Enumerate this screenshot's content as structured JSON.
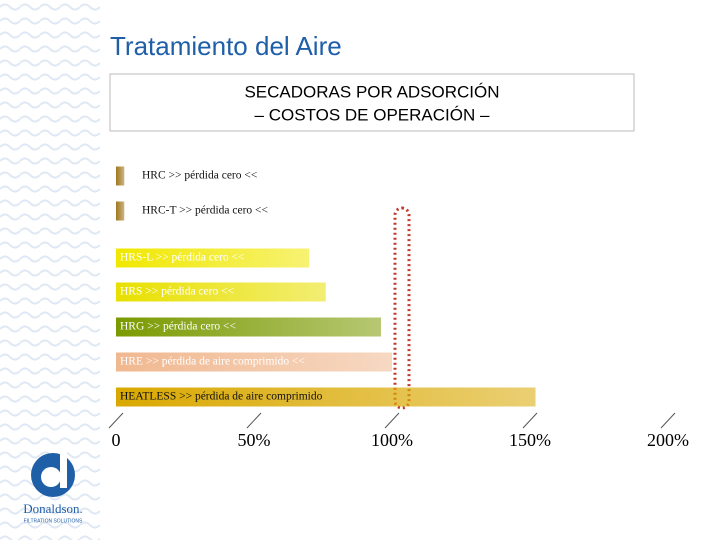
{
  "slide_title": "Tratamiento  del Aire",
  "logo": {
    "name": "Donaldson.",
    "tagline": "FILTRATION SOLUTIONS"
  },
  "chart_data": {
    "type": "bar",
    "orientation": "horizontal",
    "title": "SECADORAS POR ADSORCIÓN",
    "subtitle": "– COSTOS DE OPERACIÓN –",
    "categories": [
      "HRC   >> pérdida cero <<",
      "HRC-T  >> pérdida cero <<",
      "HRS-L  >> pérdida cero  <<",
      "HRS  >> pérdida cero <<",
      "HRG  >> pérdida cero <<",
      "HRE  >> pérdida de aire comprimido <<",
      "HEATLESS >> pérdida de aire comprimido"
    ],
    "values": [
      3,
      3,
      70,
      76,
      96,
      100,
      152
    ],
    "colors": [
      "#a0781e",
      "#a0781e",
      "#f0e800",
      "#e8e000",
      "#7a9a00",
      "#f0b890",
      "#d9a800"
    ],
    "xlim": [
      0,
      200
    ],
    "xticks": [
      0,
      {
        "value": 50,
        "label": "50%"
      },
      {
        "value": 100,
        "label": "100%"
      },
      {
        "value": 150,
        "label": "150%"
      },
      {
        "value": 200,
        "label": "200%"
      }
    ]
  }
}
